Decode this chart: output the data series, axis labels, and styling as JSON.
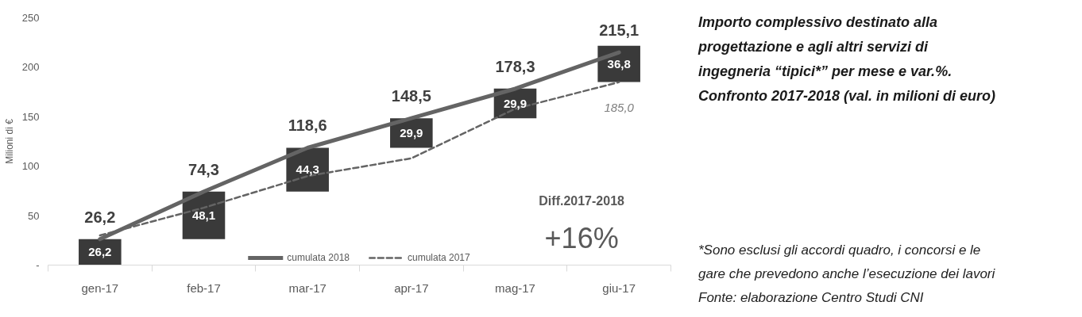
{
  "chart_data": {
    "type": "line",
    "title": "Importo complessivo destinato alla progettazione e agli altri servizi di ingegneria “tipici*” per mese e var.%. Confronto 2017-2018 (val. in milioni di euro)",
    "ylabel": "Milioni di €",
    "categories": [
      "gen-17",
      "feb-17",
      "mar-17",
      "apr-17",
      "mag-17",
      "giu-17"
    ],
    "series": [
      {
        "name": "cumulata 2018",
        "color": "#646464",
        "line_style": "solid",
        "values": [
          26.2,
          74.3,
          118.6,
          148.5,
          178.3,
          215.1
        ],
        "value_labels": [
          "26,2",
          "74,3",
          "118,6",
          "148,5",
          "178,3",
          "215,1"
        ]
      },
      {
        "name": "cumulata 2017",
        "color": "#646464",
        "line_style": "dashed",
        "values": [
          30,
          58,
          90,
          108,
          158,
          185.0
        ],
        "value_labels": [
          null,
          null,
          null,
          null,
          null,
          "185,0"
        ]
      },
      {
        "type": "bar",
        "color": "#3a3a3a",
        "base": [
          0,
          26.2,
          74.3,
          118.6,
          148.5,
          185
        ],
        "values": [
          26.2,
          48.1,
          44.3,
          29.9,
          29.9,
          36.8
        ],
        "value_labels": [
          "26,2",
          "48,1",
          "44,3",
          "29,9",
          "29,9",
          "36,8"
        ]
      }
    ],
    "ylim": [
      0,
      250
    ],
    "yticks": [
      {
        "value": 0,
        "label": "-"
      },
      50,
      100,
      150,
      200,
      250
    ],
    "legend": "bottom",
    "annotations": [
      "Diff.2017-2018",
      "+16%",
      "*Sono esclusi gli accordi quadro, i concorsi e le gare che prevedono anche l’esecuzione dei lavori",
      "Fonte: elaborazione Centro Studi CNI"
    ]
  }
}
